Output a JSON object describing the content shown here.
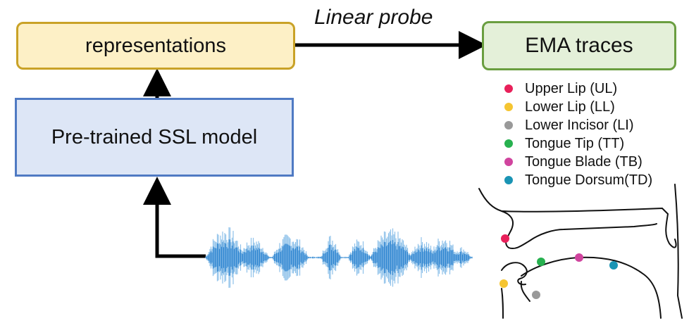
{
  "boxes": {
    "representations": "representations",
    "ssl_model": "Pre-trained SSL model",
    "ema": "EMA traces"
  },
  "probe_label": "Linear probe",
  "colors": {
    "rep_fill": "#fdf0c6",
    "rep_border": "#c9a227",
    "ssl_fill": "#dde6f6",
    "ssl_border": "#4f7ac3",
    "ema_fill": "#e4f0d9",
    "ema_border": "#6a9e40",
    "waveform": "#2f86d1",
    "waveform_light": "#8ec1ea"
  },
  "legend": [
    {
      "label": "Upper Lip (UL)",
      "color": "#e8205a"
    },
    {
      "label": "Lower Lip (LL)",
      "color": "#f5c531"
    },
    {
      "label": "Lower Incisor (LI)",
      "color": "#999999"
    },
    {
      "label": "Tongue Tip (TT)",
      "color": "#27b14f"
    },
    {
      "label": "Tongue Blade (TB)",
      "color": "#d0449e"
    },
    {
      "label": "Tongue Dorsum(TD)",
      "color": "#1a94b4"
    }
  ]
}
